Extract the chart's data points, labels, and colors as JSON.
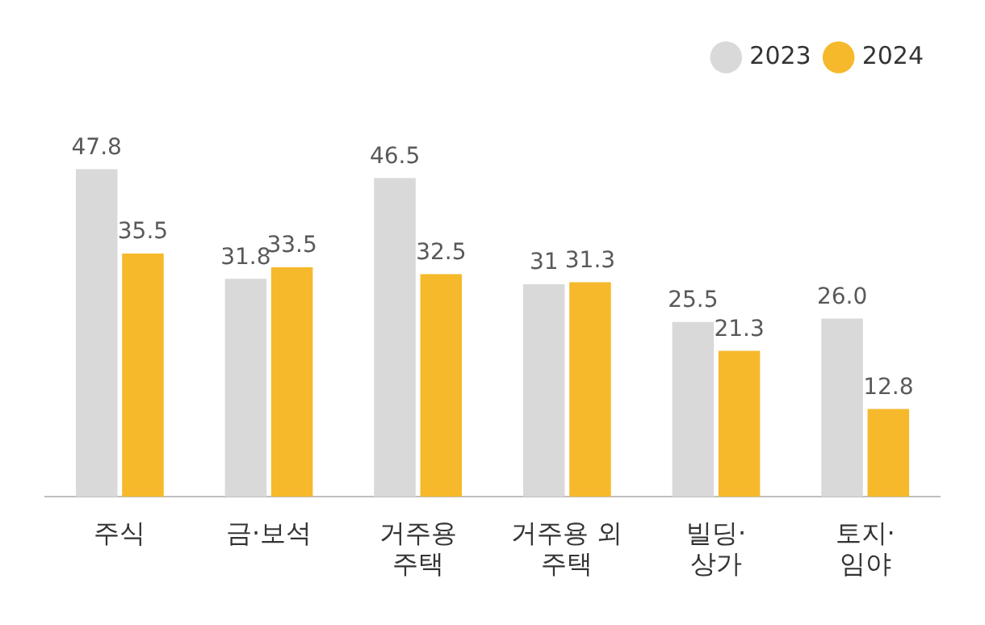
{
  "chart_data": {
    "type": "bar",
    "categories": [
      "주식",
      "금·보석",
      "거주용\n주택",
      "거주용 외\n주택",
      "빌딩·\n상가",
      "토지·\n임야"
    ],
    "series": [
      {
        "name": "2023",
        "color": "#d9d9d9",
        "values": [
          47.8,
          31.8,
          46.5,
          31,
          25.5,
          26.0
        ],
        "value_labels": [
          "47.8",
          "31.8",
          "46.5",
          "31",
          "25.5",
          "26.0"
        ]
      },
      {
        "name": "2024",
        "color": "#f6b92b",
        "values": [
          35.5,
          33.5,
          32.5,
          31.3,
          21.3,
          12.8
        ],
        "value_labels": [
          "35.5",
          "33.5",
          "32.5",
          "31.3",
          "21.3",
          "12.8"
        ]
      }
    ],
    "legend": "top right",
    "grid": false
  }
}
